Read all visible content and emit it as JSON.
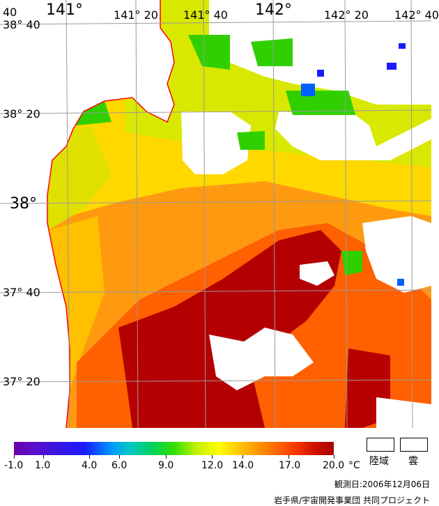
{
  "map": {
    "lon_labels": [
      "141°",
      "141° 20",
      "141° 40",
      "142°",
      "142° 20",
      "142° 40"
    ],
    "left_lon_label": "40",
    "lat_labels": [
      "38° 40",
      "38° 20",
      "38°",
      "37° 40",
      "37° 20"
    ]
  },
  "legend": {
    "ticks": [
      "-1.0",
      "1.0",
      "4.0",
      "6.0",
      "9.0",
      "12.0",
      "14.0",
      "17.0",
      "20.0"
    ],
    "unit": "°C",
    "land_label": "陸域",
    "cloud_label": "雲"
  },
  "footer": {
    "observation_date": "観測日:2006年12月06日",
    "credit": "岩手県/宇宙開発事業団 共同プロジェクト"
  },
  "colors": {
    "coast": "#ff0000",
    "grid": "#9a9a9a",
    "warm": "#aa0000",
    "orange": "#ff8a00",
    "yellow": "#e6d800",
    "green": "#30d000",
    "blue": "#1a1aff"
  }
}
